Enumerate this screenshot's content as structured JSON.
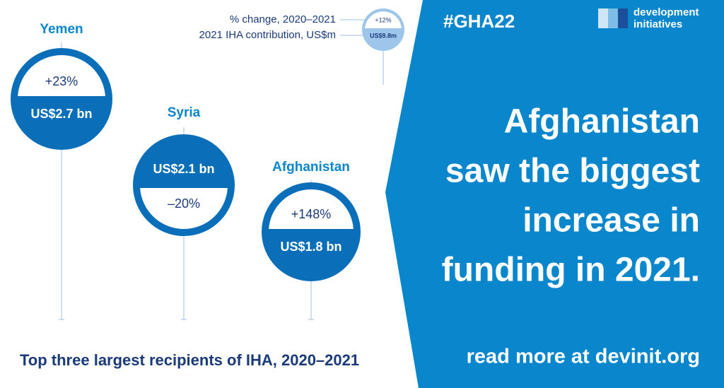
{
  "header": {
    "hashtag": "#GHA22",
    "logo": [
      "development",
      "initiatives"
    ]
  },
  "legend": {
    "change_label": "% change, 2020–2021",
    "value_label": "2021 IHA contribution, US$m",
    "change": "+12%",
    "value": "US$9.8m"
  },
  "recipients": [
    {
      "name": "Yemen",
      "change": "+23%",
      "value": "US$2.7 bn"
    },
    {
      "name": "Syria",
      "change": "–20%",
      "value": "US$2.1 bn"
    },
    {
      "name": "Afghanistan",
      "change": "+148%",
      "value": "US$1.8 bn"
    }
  ],
  "caption": "Top three largest recipients of IHA, 2020–2021",
  "headline": [
    "Afghanistan",
    "saw the biggest",
    "increase in",
    "funding in 2021."
  ],
  "link": "read more at devinit.org"
}
